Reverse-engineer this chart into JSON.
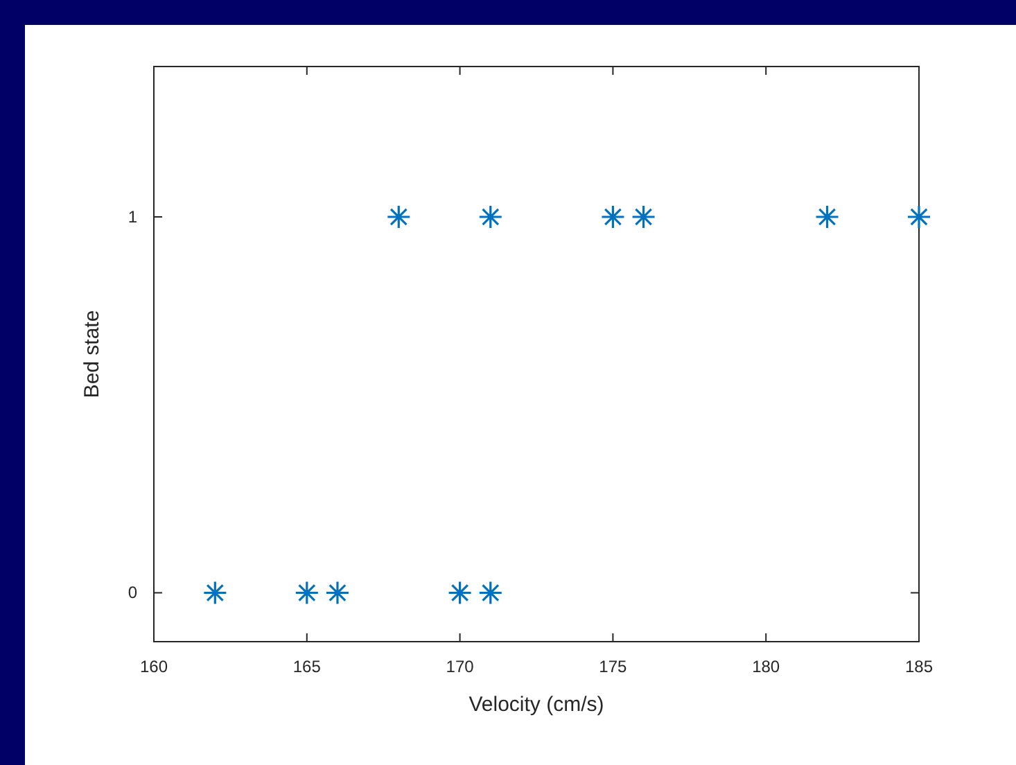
{
  "chart_data": {
    "type": "scatter",
    "xlabel": "Velocity (cm/s)",
    "ylabel": "Bed state",
    "x": [
      162,
      165,
      166,
      170,
      171,
      168,
      171,
      175,
      176,
      182,
      185
    ],
    "values": [
      0,
      0,
      0,
      0,
      0,
      1,
      1,
      1,
      1,
      1,
      1
    ],
    "color": "#0072bd",
    "marker": "cross",
    "grid": false,
    "xlim": [
      160,
      185
    ],
    "xticks": [
      160,
      165,
      170,
      175,
      180,
      185
    ],
    "ylim": [
      -0.13,
      1.4
    ],
    "yticks": [
      0,
      1
    ]
  }
}
